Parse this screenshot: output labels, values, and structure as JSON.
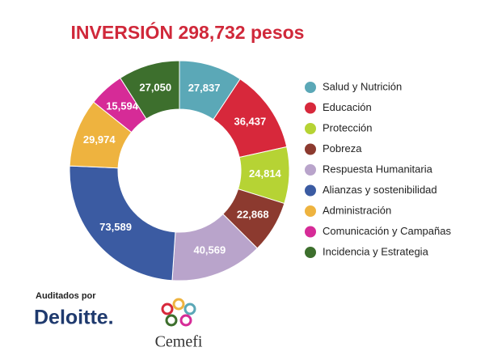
{
  "chart_data": {
    "type": "donut",
    "title": "INVERSIÓN 298,732 pesos",
    "categories": [
      "Salud y Nutrición",
      "Educación",
      "Protección",
      "Pobreza",
      "Respuesta Humanitaria",
      "Alianzas y sostenibilidad",
      "Administración",
      "Comunicación y Campañas",
      "Incidencia y Estrategia"
    ],
    "values": [
      27837,
      36437,
      24814,
      22868,
      40569,
      73589,
      29974,
      15594,
      27050
    ],
    "value_labels": [
      "27,837",
      "36,437",
      "24,814",
      "22,868",
      "40,569",
      "73,589",
      "29,974",
      "15,594",
      "27,050"
    ],
    "colors": [
      "#5ba8b7",
      "#d7283b",
      "#b6d334",
      "#8c3a2f",
      "#b9a4cb",
      "#3b5ba2",
      "#eeb33f",
      "#d62b97",
      "#3d6f2d"
    ],
    "legend": "right"
  },
  "footer": {
    "audit_label": "Auditados por",
    "auditor": "Deloitte.",
    "partner": "Cemefi"
  }
}
